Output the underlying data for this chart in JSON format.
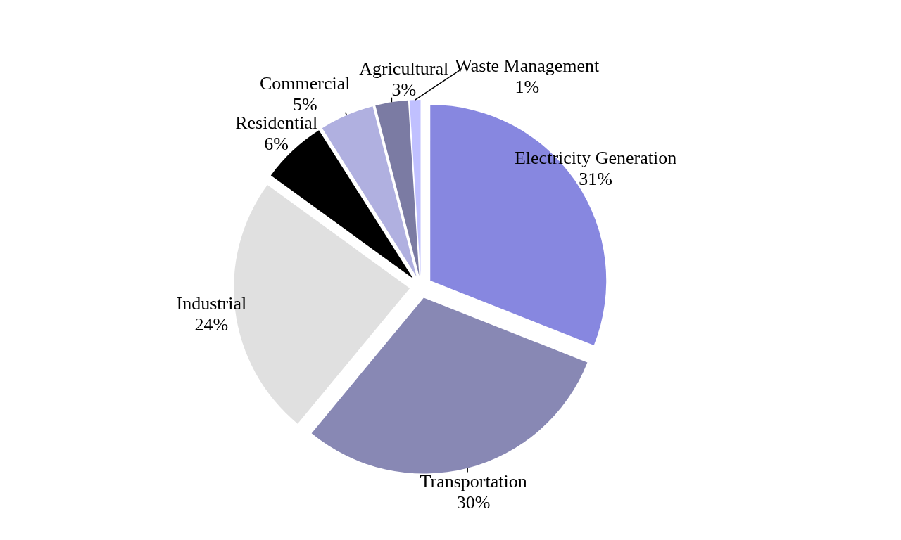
{
  "chart_data": {
    "type": "pie",
    "categories": [
      "Electricity Generation",
      "Transportation",
      "Industrial",
      "Residential",
      "Commercial",
      "Agricultural",
      "Waste Management"
    ],
    "values": [
      31,
      30,
      24,
      6,
      5,
      3,
      1
    ],
    "colors": [
      "#8787e0",
      "#8888b4",
      "#e0e0e0",
      "#000000",
      "#b0b0e0",
      "#7b7ba3",
      "#c0c0ff"
    ],
    "value_labels": [
      "31%",
      "30%",
      "24%",
      "6%",
      "5%",
      "3%",
      "1%"
    ],
    "legend": false
  }
}
